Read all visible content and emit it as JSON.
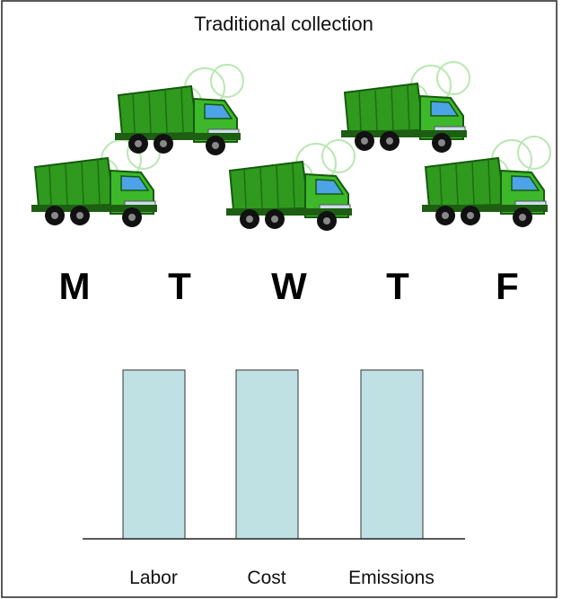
{
  "title": "Traditional collection",
  "days": [
    "M",
    "T",
    "W",
    "T",
    "F"
  ],
  "bars": [
    {
      "label": "Labor"
    },
    {
      "label": "Cost"
    },
    {
      "label": "Emissions"
    }
  ]
}
